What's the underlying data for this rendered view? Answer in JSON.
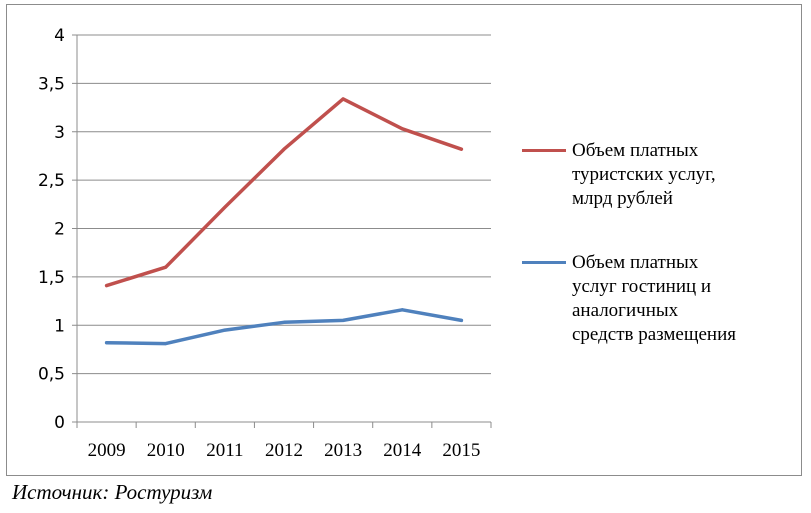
{
  "chart_data": {
    "type": "line",
    "categories": [
      "2009",
      "2010",
      "2011",
      "2012",
      "2013",
      "2014",
      "2015"
    ],
    "series": [
      {
        "name": "Объем платных туристских услуг, млрд рублей",
        "color": "#c0504d",
        "values": [
          1.41,
          1.6,
          2.22,
          2.82,
          3.34,
          3.03,
          2.82
        ]
      },
      {
        "name": "Объем платных услуг гостиниц и аналогичных средств размещения",
        "color": "#4f81bd",
        "values": [
          0.82,
          0.81,
          0.95,
          1.03,
          1.05,
          1.16,
          1.05
        ]
      }
    ],
    "y_ticks": [
      "0",
      "0,5",
      "1",
      "1,5",
      "2",
      "2,5",
      "3",
      "3,5",
      "4"
    ],
    "ylim": [
      0,
      4
    ],
    "grid": "horizontal",
    "legend_position": "right"
  },
  "legend": {
    "line1": [
      "Объем платных",
      "туристских услуг,",
      "млрд рублей"
    ],
    "line2": [
      "Объем платных",
      "услуг гостиниц и",
      "аналогичных",
      "средств размещения"
    ]
  },
  "source": "Источник: Ростуризм"
}
